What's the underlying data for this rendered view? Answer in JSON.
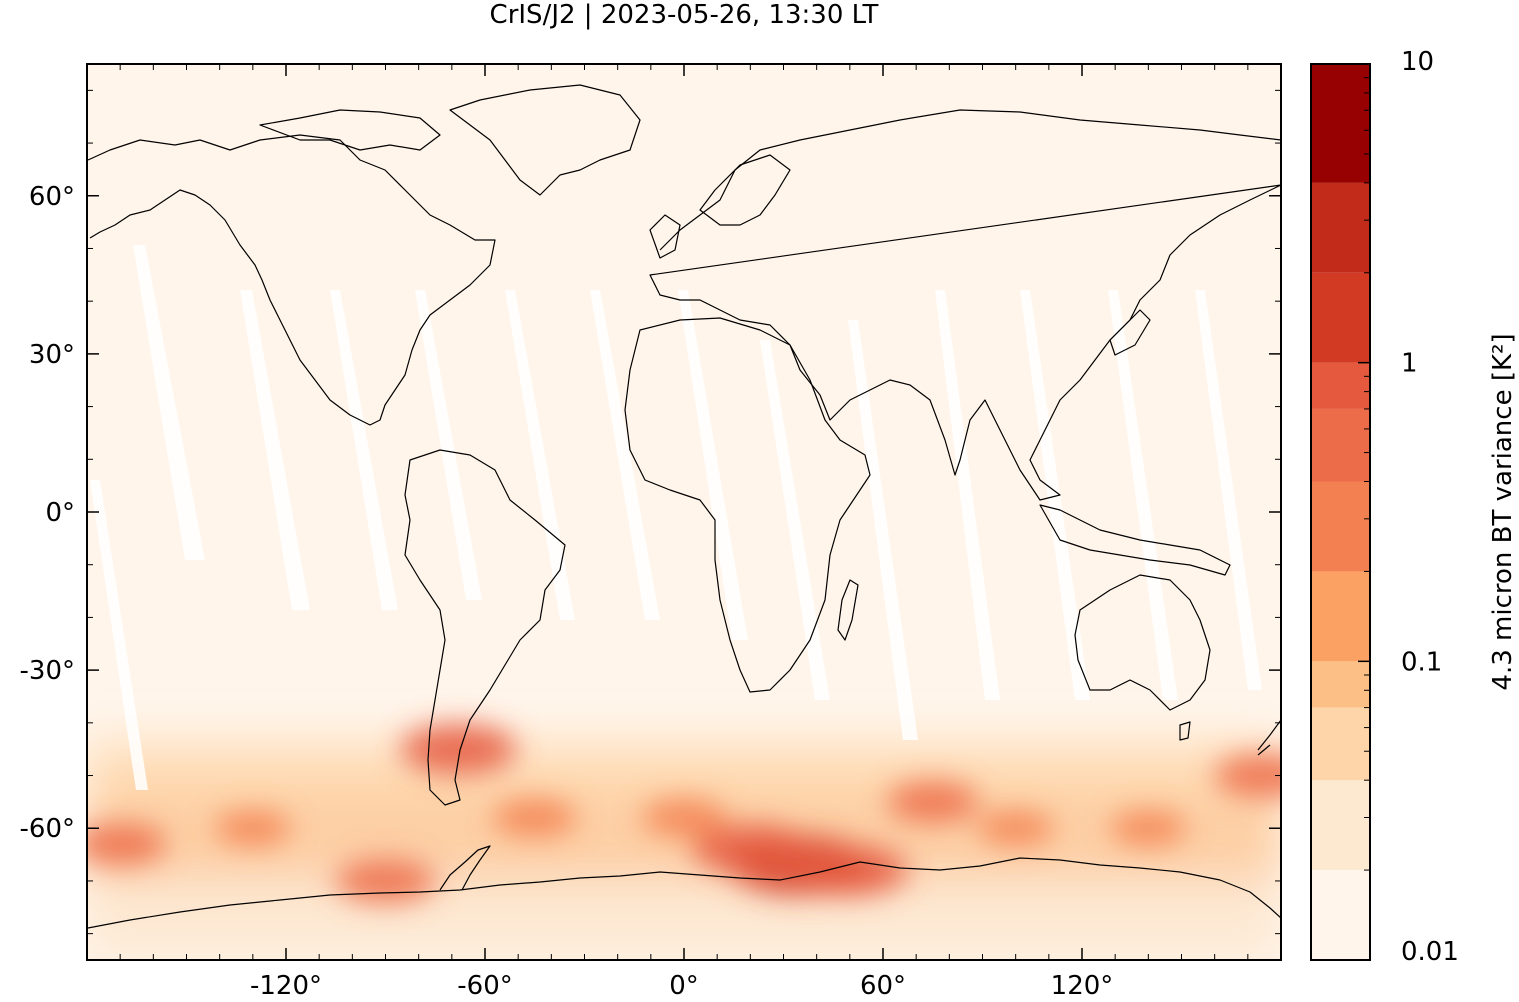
{
  "chart_data": {
    "type": "heatmap",
    "title": "CrIS/J2 | 2023-05-26, 13:30 LT",
    "xticks": [
      -120,
      -60,
      0,
      60,
      120
    ],
    "xtick_labels": [
      "-120°",
      "-60°",
      "0°",
      "60°",
      "120°"
    ],
    "yticks": [
      60,
      30,
      0,
      -30,
      -60
    ],
    "ytick_labels": [
      "60°",
      "30°",
      "0°",
      "-30°",
      "-60°"
    ],
    "xlim": [
      -180,
      180
    ],
    "ylim": [
      -85,
      85
    ],
    "colorbar": {
      "label": "4.3 micron BT variance [K²]",
      "scale": "log",
      "range": [
        0.01,
        10
      ],
      "tick_values": [
        0.01,
        0.1,
        1,
        10
      ],
      "tick_labels": [
        "0.01",
        "0.1",
        "1",
        "10"
      ],
      "levels": [
        0.01,
        0.02,
        0.04,
        0.07,
        0.1,
        0.2,
        0.4,
        0.7,
        1,
        2,
        4,
        10
      ],
      "colors": [
        "#fff5eb",
        "#fde8d0",
        "#fdd5a8",
        "#fcbf86",
        "#fba163",
        "#f38050",
        "#ec6b48",
        "#e55a3f",
        "#d23a23",
        "#c22a1a",
        "#980101"
      ]
    },
    "variance_regions": [
      {
        "lon": 35,
        "lat": -67,
        "value": 1.0
      },
      {
        "lon": 20,
        "lat": -64,
        "value": 0.7
      },
      {
        "lon": 50,
        "lat": -68,
        "value": 0.7
      },
      {
        "lon": -68,
        "lat": -45,
        "value": 0.7
      },
      {
        "lon": -90,
        "lat": -70,
        "value": 0.5
      },
      {
        "lon": 75,
        "lat": -55,
        "value": 0.4
      },
      {
        "lon": -170,
        "lat": -63,
        "value": 0.4
      },
      {
        "lon": 175,
        "lat": -50,
        "value": 0.5
      },
      {
        "lon": -45,
        "lat": -58,
        "value": 0.3
      },
      {
        "lon": 0,
        "lat": -58,
        "value": 0.3
      },
      {
        "lon": 100,
        "lat": -60,
        "value": 0.2
      },
      {
        "lon": 140,
        "lat": -60,
        "value": 0.2
      },
      {
        "lon": -130,
        "lat": -60,
        "value": 0.2
      }
    ]
  }
}
